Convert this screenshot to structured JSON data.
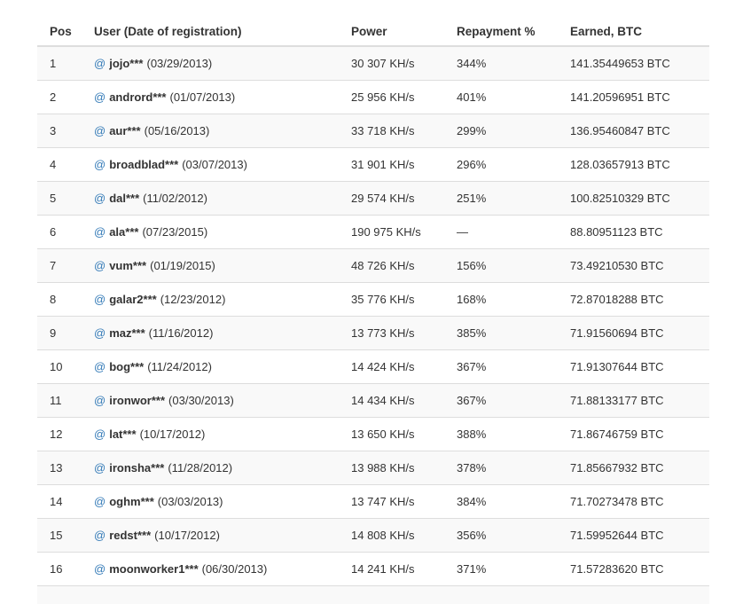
{
  "table": {
    "columns": [
      "Pos",
      "User (Date of registration)",
      "Power",
      "Repayment %",
      "Earned, BTC"
    ],
    "rows": [
      {
        "pos": "1",
        "user": "jojo***",
        "date": "(03/29/2013)",
        "power": "30 307 KH/s",
        "repayment": "344%",
        "earned": "141.35449653 BTC"
      },
      {
        "pos": "2",
        "user": "andrord***",
        "date": "(01/07/2013)",
        "power": "25 956 KH/s",
        "repayment": "401%",
        "earned": "141.20596951 BTC"
      },
      {
        "pos": "3",
        "user": "aur***",
        "date": "(05/16/2013)",
        "power": "33 718 KH/s",
        "repayment": "299%",
        "earned": "136.95460847 BTC"
      },
      {
        "pos": "4",
        "user": "broadblad***",
        "date": "(03/07/2013)",
        "power": "31 901 KH/s",
        "repayment": "296%",
        "earned": "128.03657913 BTC"
      },
      {
        "pos": "5",
        "user": "dal***",
        "date": "(11/02/2012)",
        "power": "29 574 KH/s",
        "repayment": "251%",
        "earned": "100.82510329 BTC"
      },
      {
        "pos": "6",
        "user": "ala***",
        "date": "(07/23/2015)",
        "power": "190 975 KH/s",
        "repayment": "—",
        "earned": "88.80951123 BTC"
      },
      {
        "pos": "7",
        "user": "vum***",
        "date": "(01/19/2015)",
        "power": "48 726 KH/s",
        "repayment": "156%",
        "earned": "73.49210530 BTC"
      },
      {
        "pos": "8",
        "user": "galar2***",
        "date": "(12/23/2012)",
        "power": "35 776 KH/s",
        "repayment": "168%",
        "earned": "72.87018288 BTC"
      },
      {
        "pos": "9",
        "user": "maz***",
        "date": "(11/16/2012)",
        "power": "13 773 KH/s",
        "repayment": "385%",
        "earned": "71.91560694 BTC"
      },
      {
        "pos": "10",
        "user": "bog***",
        "date": "(11/24/2012)",
        "power": "14 424 KH/s",
        "repayment": "367%",
        "earned": "71.91307644 BTC"
      },
      {
        "pos": "11",
        "user": "ironwor***",
        "date": "(03/30/2013)",
        "power": "14 434 KH/s",
        "repayment": "367%",
        "earned": "71.88133177 BTC"
      },
      {
        "pos": "12",
        "user": "lat***",
        "date": "(10/17/2012)",
        "power": "13 650 KH/s",
        "repayment": "388%",
        "earned": "71.86746759 BTC"
      },
      {
        "pos": "13",
        "user": "ironsha***",
        "date": "(11/28/2012)",
        "power": "13 988 KH/s",
        "repayment": "378%",
        "earned": "71.85667932 BTC"
      },
      {
        "pos": "14",
        "user": "oghm***",
        "date": "(03/03/2013)",
        "power": "13 747 KH/s",
        "repayment": "384%",
        "earned": "71.70273478 BTC"
      },
      {
        "pos": "15",
        "user": "redst***",
        "date": "(10/17/2012)",
        "power": "14 808 KH/s",
        "repayment": "356%",
        "earned": "71.59952644 BTC"
      },
      {
        "pos": "16",
        "user": "moonworker1***",
        "date": "(06/30/2013)",
        "power": "14 241 KH/s",
        "repayment": "371%",
        "earned": "71.57283620 BTC"
      }
    ]
  },
  "icons": {
    "at_symbol": "@"
  },
  "colors": {
    "link_blue": "#337ab7",
    "stripe_bg": "#f9f9f9",
    "row_border": "#dddddd",
    "text": "#333333"
  }
}
